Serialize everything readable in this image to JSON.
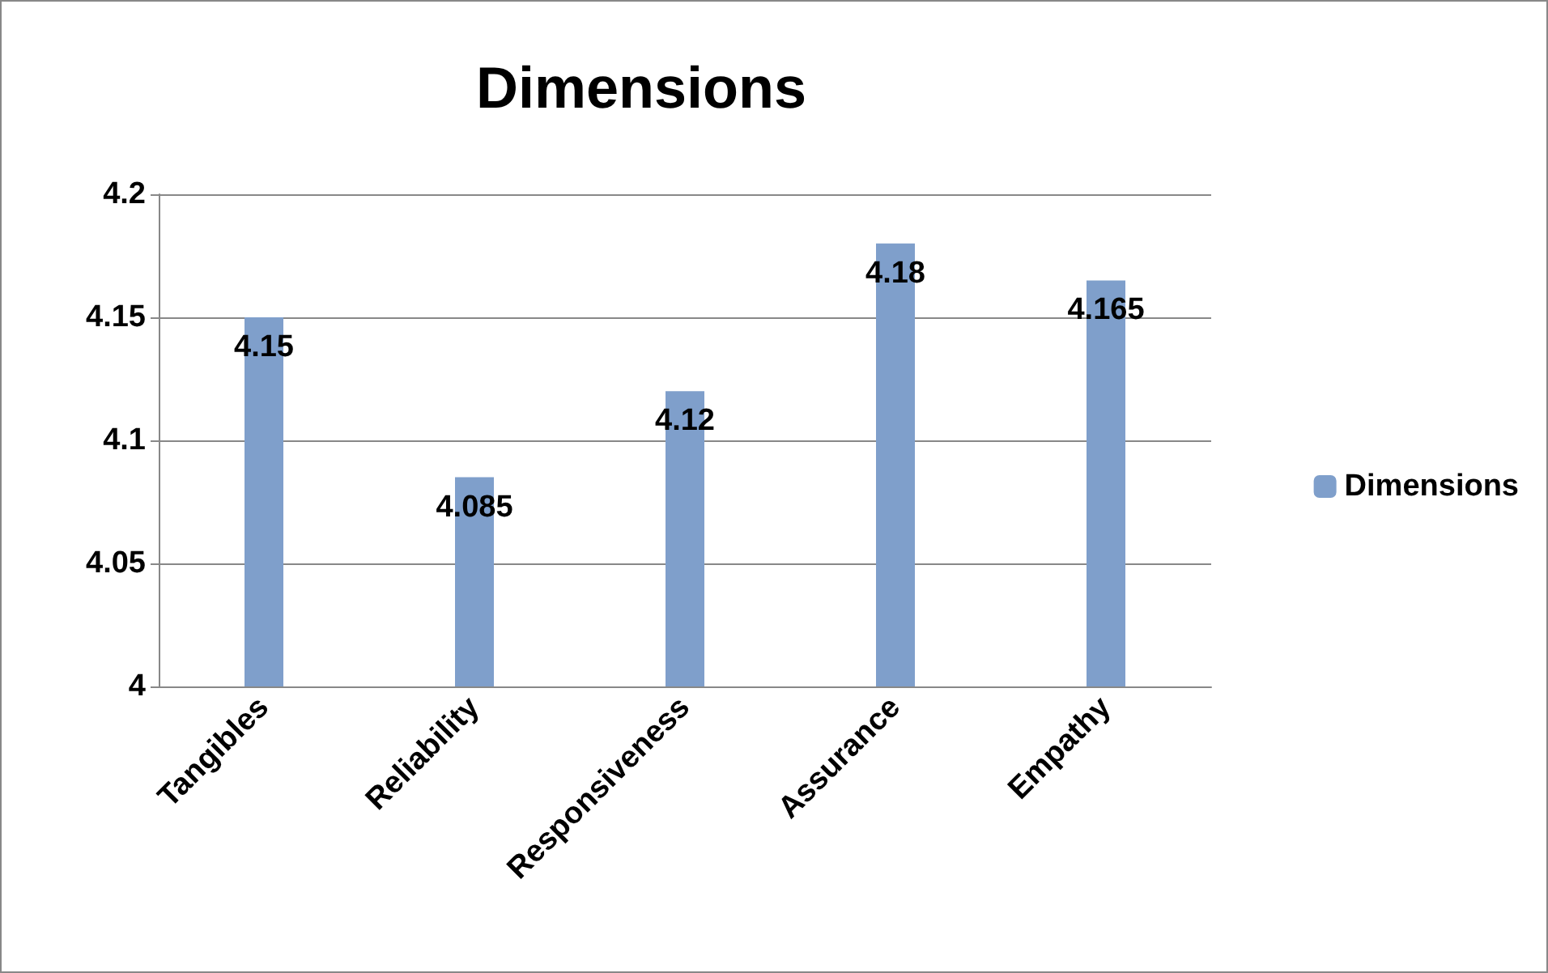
{
  "chart_data": {
    "type": "bar",
    "title": "Dimensions",
    "categories": [
      "Tangibles",
      "Reliability",
      "Responsiveness",
      "Assurance",
      "Empathy"
    ],
    "series": [
      {
        "name": "Dimensions",
        "color": "#7f9fcb",
        "values": [
          4.15,
          4.085,
          4.12,
          4.18,
          4.165
        ]
      }
    ],
    "ylim": [
      4,
      4.2
    ],
    "yticks": [
      4,
      4.05,
      4.1,
      4.15,
      4.2
    ],
    "grid": "y",
    "legend": "right",
    "data_labels": true
  }
}
